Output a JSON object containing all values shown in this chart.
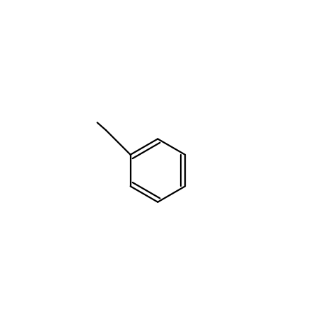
{
  "background_color": "#ffffff",
  "line_color": "#000000",
  "line_width": 1.6,
  "font_size": 10.5,
  "figsize": [
    4.53,
    4.37
  ],
  "dpi": 100
}
